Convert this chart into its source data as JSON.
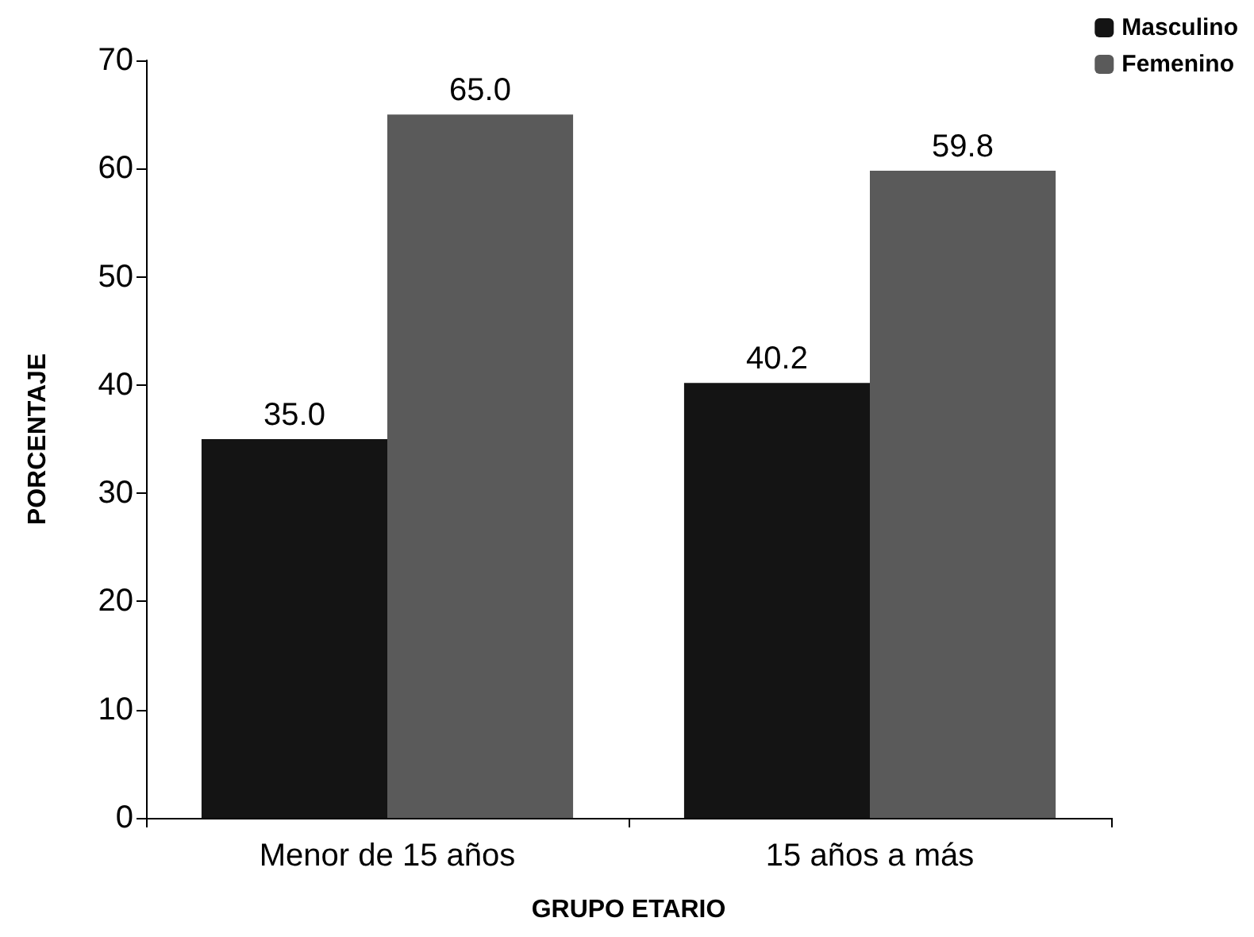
{
  "chart_data": {
    "type": "bar",
    "xlabel": "GRUPO ETARIO",
    "ylabel": "PORCENTAJE",
    "categories": [
      "Menor de 15 años",
      "15 años a más"
    ],
    "series": [
      {
        "name": "Masculino",
        "color": "#141414",
        "values": [
          35.0,
          40.2
        ],
        "value_labels": [
          "35.0",
          "40.2"
        ]
      },
      {
        "name": "Femenino",
        "color": "#5a5a5a",
        "values": [
          65.0,
          59.8
        ],
        "value_labels": [
          "65.0",
          "59.8"
        ]
      }
    ],
    "ylim": [
      0,
      70
    ],
    "yticks": [
      0,
      10,
      20,
      30,
      40,
      50,
      60,
      70
    ],
    "grid": false,
    "legend": "top right"
  }
}
